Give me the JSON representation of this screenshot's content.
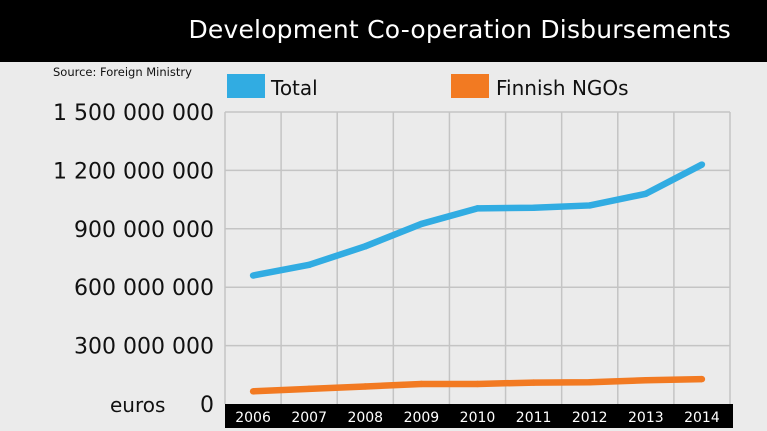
{
  "title": "Development Co-operation Disbursements",
  "source": "Source: Foreign Ministry",
  "colors": {
    "total": "#31ace2",
    "ngo": "#f27a22",
    "grid": "#c4c4c4",
    "axis_bar": "#000000"
  },
  "chart_data": {
    "type": "line",
    "title": "Development Co-operation Disbursements",
    "ylabel": "euros",
    "xlabel": "",
    "ylim": [
      0,
      1500000000
    ],
    "yticks": [
      0,
      300000000,
      600000000,
      900000000,
      1200000000,
      1500000000
    ],
    "ytick_labels": [
      "0",
      "300 000 000",
      "600 000 000",
      "900 000 000",
      "1 200 000 000",
      "1 500 000 000"
    ],
    "categories": [
      "2006",
      "2007",
      "2008",
      "2009",
      "2010",
      "2011",
      "2012",
      "2013",
      "2014"
    ],
    "series": [
      {
        "name": "Total",
        "color": "#31ace2",
        "values": [
          660000000,
          715000000,
          810000000,
          925000000,
          1005000000,
          1008000000,
          1020000000,
          1080000000,
          1230000000
        ]
      },
      {
        "name": "Finnish NGOs",
        "color": "#f27a22",
        "values": [
          65000000,
          78000000,
          90000000,
          103000000,
          103000000,
          110000000,
          112000000,
          122000000,
          128000000
        ]
      }
    ],
    "legend": "top",
    "grid": true
  }
}
